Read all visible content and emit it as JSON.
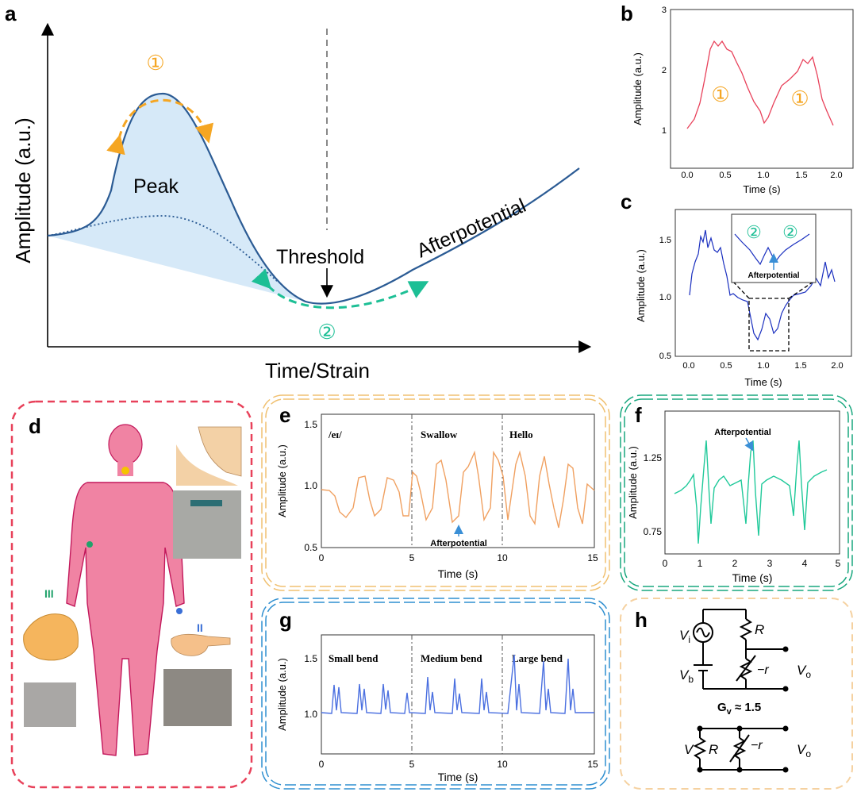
{
  "panel_letters": {
    "a": "a",
    "b": "b",
    "c": "c",
    "d": "d",
    "e": "e",
    "f": "f",
    "g": "g",
    "h": "h"
  },
  "panel_a": {
    "xlabel": "Time/Strain",
    "ylabel": "Amplitude (a.u.)",
    "peak_label": "Peak",
    "threshold_label": "Threshold",
    "afterpotential_label": "Afterpotential",
    "marker1": "①",
    "marker2": "②",
    "colors": {
      "curve": "#2b5b94",
      "fill": "#d6e9f8",
      "marker1": "#f5a623",
      "marker2": "#1dbf95"
    }
  },
  "panel_b": {
    "ylabel": "Amplitude (a.u.)",
    "xlabel": "Time (s)",
    "yticks": [
      "1",
      "2",
      "3"
    ],
    "xticks": [
      "0.0",
      "0.5",
      "1.0",
      "1.5",
      "2.0"
    ],
    "marker_left": "①",
    "marker_right": "①",
    "color": "#e8415a"
  },
  "panel_c": {
    "ylabel": "Amplitude (a.u.)",
    "xlabel": "Time (s)",
    "yticks": [
      "0.5",
      "1.0",
      "1.5"
    ],
    "xticks": [
      "0.0",
      "0.5",
      "1.0",
      "1.5",
      "2.0"
    ],
    "inset_marker_left": "②",
    "inset_marker_right": "②",
    "inset_label": "Afterpotential",
    "color": "#1a2fbf"
  },
  "panel_d": {
    "roman_III": "III",
    "roman_II": "II"
  },
  "panel_e": {
    "ylabel": "Amplitude (a.u.)",
    "xlabel": "Time (s)",
    "yticks": [
      "0.5",
      "1.0",
      "1.5"
    ],
    "xticks": [
      "0",
      "5",
      "10",
      "15"
    ],
    "seg1": "/eɪ/",
    "seg2": "Swallow",
    "seg3": "Hello",
    "annotation": "Afterpotential",
    "color": "#f0a060"
  },
  "panel_f": {
    "ylabel": "Amplitude (a.u.)",
    "xlabel": "Time (s)",
    "yticks": [
      "0.75",
      "1.25"
    ],
    "xticks": [
      "0",
      "1",
      "2",
      "3",
      "4",
      "5"
    ],
    "annotation": "Afterpotential",
    "color": "#20c99a"
  },
  "panel_g": {
    "ylabel": "Amplitude (a.u.)",
    "xlabel": "Time (s)",
    "yticks": [
      "1.0",
      "1.5"
    ],
    "xticks": [
      "0",
      "5",
      "10",
      "15"
    ],
    "seg1": "Small bend",
    "seg2": "Medium bend",
    "seg3": "Large bend",
    "color": "#4a6fe0"
  },
  "panel_h": {
    "Vi": "V",
    "Vi_sub": "i",
    "Vb": "V",
    "Vb_sub": "b",
    "R": "R",
    "minus_r": "−r",
    "Vo": "V",
    "Vo_sub": "o",
    "gain": "G",
    "gain_sub": "v",
    "gain_value": " ≈ 1.5",
    "V2": "V",
    "R2": "R",
    "minus_r2": "−r",
    "Vo2": "V",
    "Vo2_sub": "o"
  }
}
